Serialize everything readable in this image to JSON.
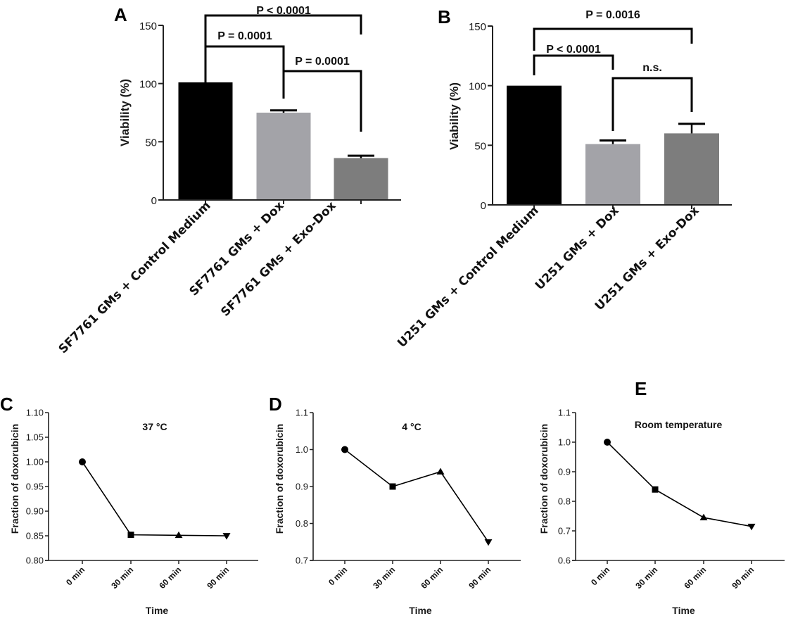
{
  "figure": {
    "panels": [
      "A",
      "B",
      "C",
      "D",
      "E"
    ]
  },
  "chart_data": [
    {
      "panel": "A",
      "type": "bar",
      "title": "",
      "xlabel": "",
      "ylabel": "Viability (%)",
      "ylim": [
        0,
        150
      ],
      "yticks": [
        0,
        50,
        100,
        150
      ],
      "categories": [
        "SF7761 GMs + Control  Medium",
        "SF7761 GMs + Dox",
        "SF7761 GMs + Exo-Dox"
      ],
      "values": [
        101,
        75,
        36
      ],
      "error_upper": [
        101,
        77,
        38
      ],
      "colors": [
        "#000000",
        "#a3a3a8",
        "#7d7d7d"
      ],
      "comparisons": [
        {
          "from": 0,
          "to": 1,
          "label": "P = 0.0001"
        },
        {
          "from": 1,
          "to": 2,
          "label": "P = 0.0001"
        },
        {
          "from": 0,
          "to": 2,
          "label": "P < 0.0001"
        }
      ],
      "grid": false
    },
    {
      "panel": "B",
      "type": "bar",
      "title": "",
      "xlabel": "",
      "ylabel": "Viability (%)",
      "ylim": [
        0,
        150
      ],
      "yticks": [
        0,
        50,
        100,
        150
      ],
      "categories": [
        "U251 GMs + Control  Medium",
        "U251 GMs + Dox",
        "U251 GMs + Exo-Dox"
      ],
      "values": [
        100,
        51,
        60
      ],
      "error_upper": [
        100,
        54,
        68
      ],
      "colors": [
        "#000000",
        "#a3a3a8",
        "#7d7d7d"
      ],
      "comparisons": [
        {
          "from": 0,
          "to": 1,
          "label": "P < 0.0001"
        },
        {
          "from": 1,
          "to": 2,
          "label": "n.s."
        },
        {
          "from": 0,
          "to": 2,
          "label": "P = 0.0016"
        }
      ],
      "grid": false
    },
    {
      "panel": "C",
      "type": "line",
      "title": "37 °C",
      "xlabel": "Time",
      "ylabel": "Fraction of doxorubicin",
      "ylim": [
        0.8,
        1.1
      ],
      "yticks": [
        "0.80",
        "0.85",
        "0.90",
        "0.95",
        "1.00",
        "1.05",
        "1.10"
      ],
      "x": [
        "0 min",
        "30 min",
        "60 min",
        "90 min"
      ],
      "values": [
        1.0,
        0.852,
        0.851,
        0.85
      ],
      "markers": [
        "circle",
        "square",
        "triangle-up",
        "triangle-down"
      ],
      "grid": false
    },
    {
      "panel": "D",
      "type": "line",
      "title": "4 °C",
      "xlabel": "Time",
      "ylabel": "Fraction of doxorubicin",
      "ylim": [
        0.7,
        1.1
      ],
      "yticks": [
        "0.7",
        "0.8",
        "0.9",
        "1.0",
        "1.1"
      ],
      "x": [
        "0 min",
        "30 min",
        "60 min",
        "90 min"
      ],
      "values": [
        1.0,
        0.9,
        0.94,
        0.75
      ],
      "markers": [
        "circle",
        "square",
        "triangle-up",
        "triangle-down"
      ],
      "grid": false
    },
    {
      "panel": "E",
      "type": "line",
      "title": "Room temperature",
      "xlabel": "Time",
      "ylabel": "Fraction of doxorubicin",
      "ylim": [
        0.6,
        1.1
      ],
      "yticks": [
        "0.6",
        "0.7",
        "0.8",
        "0.9",
        "1.0",
        "1.1"
      ],
      "x": [
        "0 min",
        "30 min",
        "60 min",
        "90 min"
      ],
      "values": [
        1.0,
        0.84,
        0.745,
        0.715
      ],
      "markers": [
        "circle",
        "square",
        "triangle-up",
        "triangle-down"
      ],
      "grid": false
    }
  ]
}
